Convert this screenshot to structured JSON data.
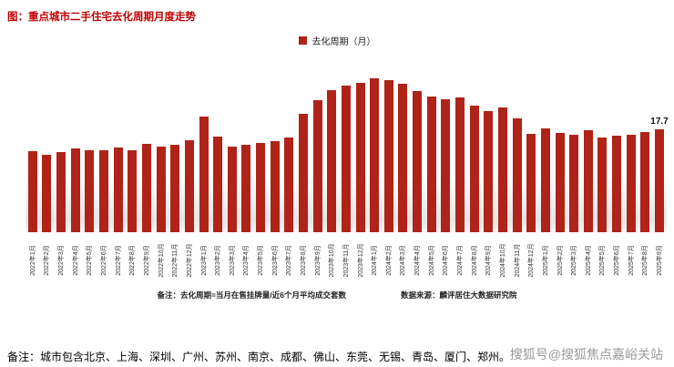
{
  "page": {
    "title": "图：重点城市二手住宅去化周期月度走势",
    "legend_label": "去化周期（月）",
    "note_left": "备注：去化周期=当月在售挂牌量/近6个月平均成交套数",
    "note_right": "数据来源：麟评居住大数据研究院",
    "footer_note": "备注：城市包含北京、上海、深圳、广州、苏州、南京、成都、佛山、东莞、无锡、青岛、厦门、郑州。",
    "watermark": "搜狐号@搜狐焦点嘉峪关站"
  },
  "colors": {
    "bar": "#b02318",
    "title": "#c00000",
    "watermark": "#9a9a9a"
  },
  "chart_data": {
    "type": "bar",
    "title": "重点城市二手住宅去化周期月度走势",
    "legend": [
      "去化周期（月）"
    ],
    "legend_position": "top",
    "grid": false,
    "y_axis_visible": false,
    "xlabel": "",
    "ylabel": "去化周期（月）",
    "ylim": [
      0,
      28
    ],
    "last_value_label": "17.7",
    "categories": [
      "2022年1月",
      "2022年2月",
      "2022年3月",
      "2022年4月",
      "2022年5月",
      "2022年6月",
      "2022年7月",
      "2022年8月",
      "2022年9月",
      "2022年10月",
      "2022年11月",
      "2022年12月",
      "2023年1月",
      "2023年2月",
      "2023年3月",
      "2023年4月",
      "2023年5月",
      "2023年6月",
      "2023年7月",
      "2023年8月",
      "2023年9月",
      "2023年10月",
      "2023年11月",
      "2023年12月",
      "2024年1月",
      "2024年2月",
      "2024年3月",
      "2024年4月",
      "2024年5月",
      "2024年6月",
      "2024年7月",
      "2024年8月",
      "2024年9月",
      "2024年10月",
      "2024年11月",
      "2024年12月",
      "2025年1月",
      "2025年2月",
      "2025年3月",
      "2025年4月",
      "2025年5月",
      "2025年6月",
      "2025年7月",
      "2025年8月",
      "2025年9月"
    ],
    "values": [
      14.0,
      13.4,
      13.9,
      14.4,
      14.2,
      14.1,
      14.6,
      14.1,
      15.2,
      14.8,
      15.1,
      15.9,
      19.9,
      16.5,
      14.8,
      15.1,
      15.4,
      15.8,
      16.3,
      20.5,
      22.8,
      24.6,
      25.3,
      25.8,
      26.5,
      26.2,
      25.6,
      24.3,
      23.5,
      22.9,
      23.2,
      21.8,
      20.9,
      21.5,
      19.6,
      17.0,
      18.0,
      17.2,
      16.8,
      17.6,
      16.3,
      16.6,
      16.9,
      17.3,
      17.7
    ]
  }
}
